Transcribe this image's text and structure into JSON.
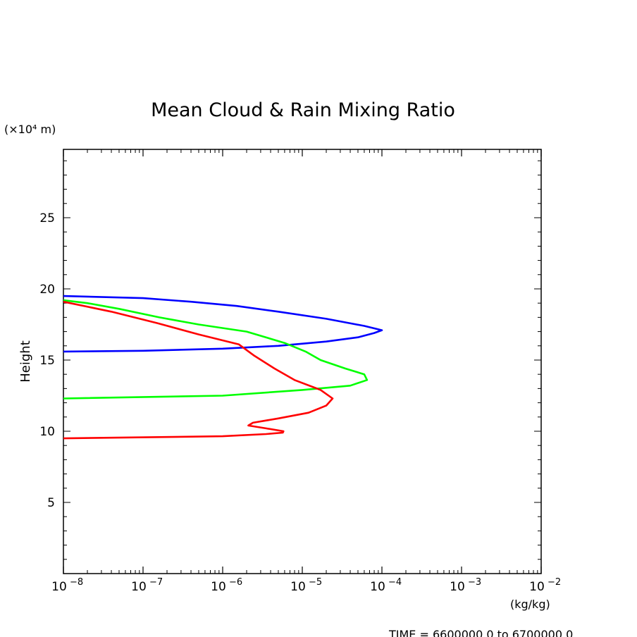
{
  "chart_data": {
    "type": "line",
    "title": "Mean Cloud & Rain Mixing Ratio",
    "ylabel": "Height",
    "yunit": "(×10⁴ m)",
    "xunit": "(kg/kg)",
    "xscale": "log",
    "xlim": [
      1e-08,
      0.01
    ],
    "ylim": [
      0,
      29.8
    ],
    "grid": false,
    "x_ticks": [
      {
        "value": 1e-08,
        "base": "10",
        "exp": "−8"
      },
      {
        "value": 1e-07,
        "base": "10",
        "exp": "−7"
      },
      {
        "value": 1e-06,
        "base": "10",
        "exp": "−6"
      },
      {
        "value": 1e-05,
        "base": "10",
        "exp": "−5"
      },
      {
        "value": 0.0001,
        "base": "10",
        "exp": "−4"
      },
      {
        "value": 0.001,
        "base": "10",
        "exp": "−3"
      },
      {
        "value": 0.01,
        "base": "10",
        "exp": "−2"
      }
    ],
    "y_ticks": [
      5,
      10,
      15,
      20,
      25
    ],
    "series": [
      {
        "color": "#0000ff",
        "points": [
          [
            1e-08,
            15.6
          ],
          [
            1e-07,
            15.65
          ],
          [
            1e-06,
            15.8
          ],
          [
            5e-06,
            16.0
          ],
          [
            2e-05,
            16.3
          ],
          [
            5e-05,
            16.6
          ],
          [
            8e-05,
            16.9
          ],
          [
            0.0001,
            17.1
          ],
          [
            6e-05,
            17.4
          ],
          [
            2e-05,
            17.9
          ],
          [
            5e-06,
            18.4
          ],
          [
            1.5e-06,
            18.8
          ],
          [
            4e-07,
            19.1
          ],
          [
            1e-07,
            19.35
          ],
          [
            1e-08,
            19.5
          ]
        ]
      },
      {
        "color": "#00ff00",
        "points": [
          [
            1e-08,
            12.3
          ],
          [
            1e-06,
            12.5
          ],
          [
            1e-05,
            12.9
          ],
          [
            4e-05,
            13.2
          ],
          [
            6.5e-05,
            13.6
          ],
          [
            6e-05,
            14.0
          ],
          [
            3.5e-05,
            14.4
          ],
          [
            1.7e-05,
            15.0
          ],
          [
            1.1e-05,
            15.6
          ],
          [
            6e-06,
            16.2
          ],
          [
            2e-06,
            17.0
          ],
          [
            5e-07,
            17.5
          ],
          [
            1.6e-07,
            18.0
          ],
          [
            5e-08,
            18.6
          ],
          [
            2e-08,
            19.0
          ],
          [
            1e-08,
            19.2
          ]
        ]
      },
      {
        "color": "#ff0000",
        "points": [
          [
            1e-08,
            9.5
          ],
          [
            1e-06,
            9.65
          ],
          [
            3.5e-06,
            9.8
          ],
          [
            5.7e-06,
            9.9
          ],
          [
            5.8e-06,
            10.0
          ],
          [
            3.5e-06,
            10.2
          ],
          [
            2.1e-06,
            10.4
          ],
          [
            2.4e-06,
            10.6
          ],
          [
            5e-06,
            10.9
          ],
          [
            1.2e-05,
            11.3
          ],
          [
            2e-05,
            11.8
          ],
          [
            2.4e-05,
            12.3
          ],
          [
            1.7e-05,
            12.9
          ],
          [
            8e-06,
            13.6
          ],
          [
            4.5e-06,
            14.4
          ],
          [
            2.5e-06,
            15.3
          ],
          [
            1.6e-06,
            16.1
          ],
          [
            5e-07,
            16.8
          ],
          [
            1.5e-07,
            17.6
          ],
          [
            4e-08,
            18.4
          ],
          [
            1e-08,
            19.1
          ]
        ]
      }
    ]
  },
  "footer": {
    "time_text": "TIME = 6600000.0 to 6700000.0"
  }
}
